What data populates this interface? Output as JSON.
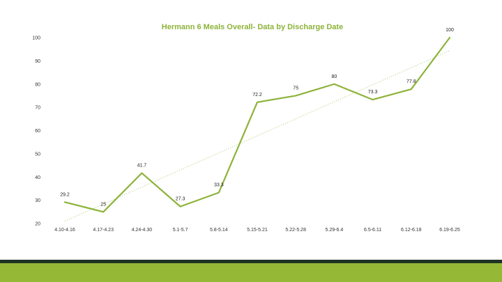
{
  "colors": {
    "series": "#8db33a",
    "title": "#8db33a",
    "trend": "#b9d08a",
    "footer_dark": "#1f3324",
    "footer_bar": "#95b837"
  },
  "chart_data": {
    "type": "line",
    "title": "Hermann 6 Meals Overall- Data by Discharge Date",
    "xlabel": "",
    "ylabel": "",
    "categories": [
      "4.10-4.16",
      "4.17-4.23",
      "4.24-4.30",
      "5.1-5.7",
      "5.8-5.14",
      "5.15-5.21",
      "5.22-5.28",
      "5.29-6.4",
      "6.5-6.11",
      "6.12-6.18",
      "6.19-6.25"
    ],
    "series": [
      {
        "values": [
          29.2,
          25,
          41.7,
          27.3,
          33.3,
          72.2,
          75,
          80,
          73.3,
          77.8,
          100
        ],
        "labels": [
          "29.2",
          "25",
          "41.7",
          "27.3",
          "33.3",
          "72.2",
          "75",
          "80",
          "73.3",
          "77.8",
          "100"
        ]
      }
    ],
    "trendline": {
      "type": "linear",
      "style": "dotted"
    },
    "ylim": [
      20,
      100
    ],
    "yticks": [
      20,
      30,
      40,
      50,
      60,
      70,
      80,
      90,
      100
    ],
    "grid": false,
    "legend": "none"
  }
}
